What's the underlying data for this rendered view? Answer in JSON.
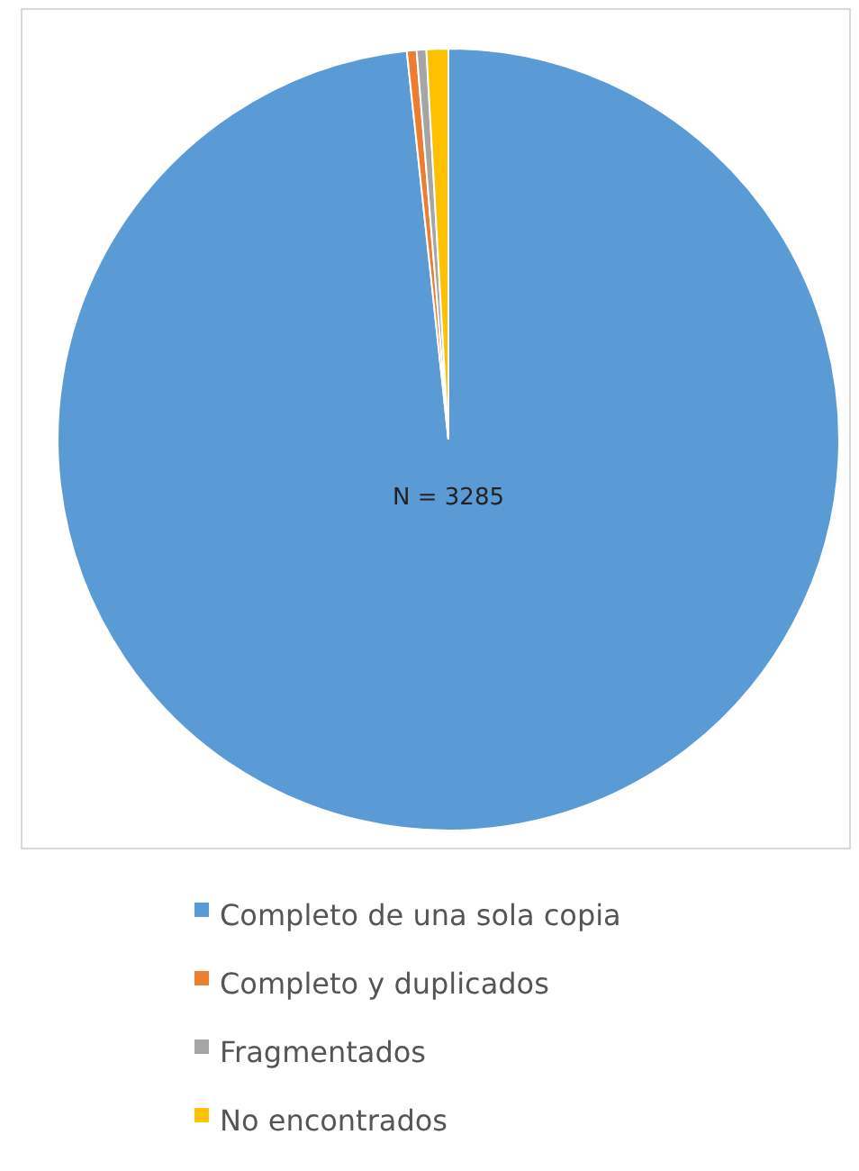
{
  "chart_data": {
    "type": "pie",
    "categories": [
      "Completo de una sola copia",
      "Completo y duplicados",
      "Fragmentados",
      "No encontrados"
    ],
    "values": [
      98.3,
      0.4,
      0.4,
      0.9
    ],
    "colors": [
      "#5b9bd5",
      "#ed7d31",
      "#a5a5a5",
      "#ffc000"
    ],
    "annotations": [
      "N = 3285"
    ],
    "legend": "bottom"
  }
}
